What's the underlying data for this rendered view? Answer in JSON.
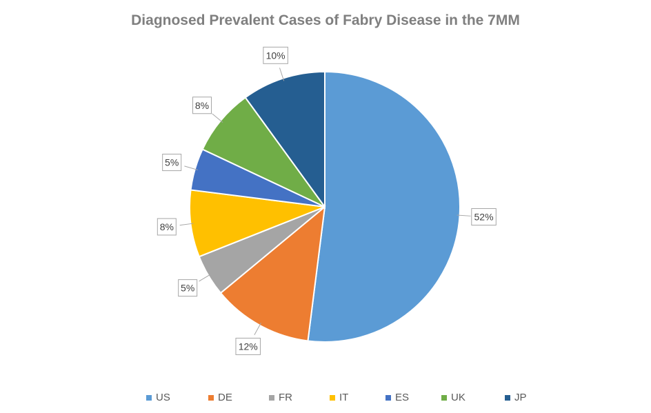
{
  "chart_data": {
    "type": "pie",
    "title": "Diagnosed Prevalent Cases of Fabry Disease in the 7MM",
    "categories": [
      "US",
      "DE",
      "FR",
      "IT",
      "ES",
      "UK",
      "JP"
    ],
    "values": [
      52,
      12,
      5,
      8,
      5,
      8,
      10
    ],
    "data_labels": [
      "52%",
      "12%",
      "5%",
      "8%",
      "5%",
      "8%",
      "10%"
    ],
    "colors": [
      "#5b9bd5",
      "#ed7d31",
      "#a5a5a5",
      "#ffc000",
      "#4472c4",
      "#70ad47",
      "#255e91"
    ],
    "start_angle": "12 o'clock",
    "direction": "clockwise",
    "legend_position": "bottom"
  }
}
